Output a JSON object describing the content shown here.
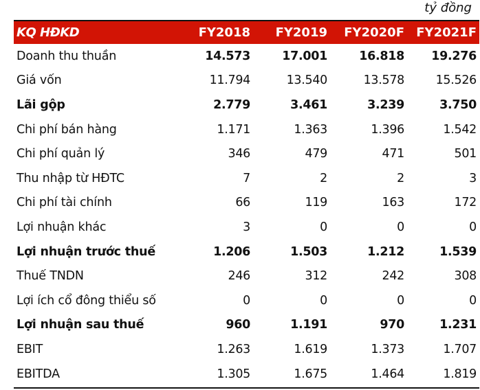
{
  "unit_label": "tỷ đồng",
  "table": {
    "header": {
      "label": "KQ HĐKD",
      "columns": [
        "FY2018",
        "FY2019",
        "FY2020F",
        "FY2021F"
      ],
      "background": "#d21405",
      "text_color": "#ffffff"
    },
    "rows": [
      {
        "label": "Doanh thu thuần",
        "label_bold": false,
        "values_bold": true,
        "values": [
          "14.573",
          "17.001",
          "16.818",
          "19.276"
        ]
      },
      {
        "label": "Giá vốn",
        "label_bold": false,
        "values_bold": false,
        "values": [
          "11.794",
          "13.540",
          "13.578",
          "15.526"
        ]
      },
      {
        "label": "Lãi gộp",
        "label_bold": true,
        "values_bold": true,
        "values": [
          "2.779",
          "3.461",
          "3.239",
          "3.750"
        ]
      },
      {
        "label": "Chi phí bán hàng",
        "label_bold": false,
        "values_bold": false,
        "values": [
          "1.171",
          "1.363",
          "1.396",
          "1.542"
        ]
      },
      {
        "label": "Chi phí quản lý",
        "label_bold": false,
        "values_bold": false,
        "values": [
          "346",
          "479",
          "471",
          "501"
        ]
      },
      {
        "label": "Thu nhập từ HĐTC",
        "label_bold": false,
        "values_bold": false,
        "values": [
          "7",
          "2",
          "2",
          "3"
        ]
      },
      {
        "label": "Chi phí tài chính",
        "label_bold": false,
        "values_bold": false,
        "values": [
          "66",
          "119",
          "163",
          "172"
        ]
      },
      {
        "label": "Lợi nhuận khác",
        "label_bold": false,
        "values_bold": false,
        "values": [
          "3",
          "0",
          "0",
          "0"
        ]
      },
      {
        "label": "Lợi nhuận trước thuế",
        "label_bold": true,
        "values_bold": true,
        "values": [
          "1.206",
          "1.503",
          "1.212",
          "1.539"
        ]
      },
      {
        "label": "Thuế TNDN",
        "label_bold": false,
        "values_bold": false,
        "values": [
          "246",
          "312",
          "242",
          "308"
        ]
      },
      {
        "label": "Lợi ích cổ đông thiểu số",
        "label_bold": false,
        "values_bold": false,
        "values": [
          "0",
          "0",
          "0",
          "0"
        ]
      },
      {
        "label": "Lợi nhuận sau thuế",
        "label_bold": true,
        "values_bold": true,
        "values": [
          "960",
          "1.191",
          "970",
          "1.231"
        ]
      },
      {
        "label": "EBIT",
        "label_bold": false,
        "values_bold": false,
        "values": [
          "1.263",
          "1.619",
          "1.373",
          "1.707"
        ]
      },
      {
        "label": "EBITDA",
        "label_bold": false,
        "values_bold": false,
        "values": [
          "1.305",
          "1.675",
          "1.464",
          "1.819"
        ]
      }
    ]
  }
}
